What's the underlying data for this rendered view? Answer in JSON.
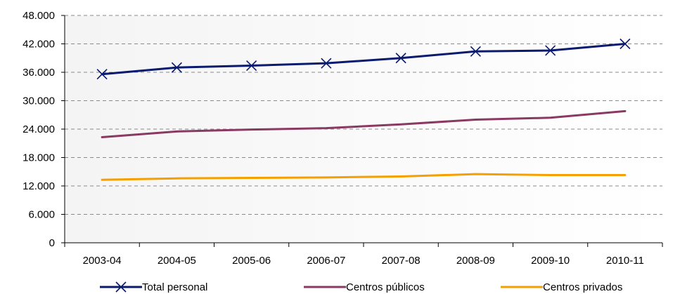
{
  "chart_data": {
    "type": "line",
    "title": "",
    "xlabel": "",
    "ylabel": "",
    "categories": [
      "2003-04",
      "2004-05",
      "2005-06",
      "2006-07",
      "2007-08",
      "2008-09",
      "2009-10",
      "2010-11"
    ],
    "ylim": [
      0,
      48000
    ],
    "yticks": [
      0,
      6000,
      12000,
      18000,
      24000,
      30000,
      36000,
      42000,
      48000
    ],
    "ytick_labels": [
      "0",
      "6.000",
      "12.000",
      "18.000",
      "24.000",
      "30.000",
      "36.000",
      "42.000",
      "48.000"
    ],
    "grid": true,
    "legend_position": "bottom",
    "series": [
      {
        "name": "Total personal",
        "color": "#0a1a6e",
        "marker": "x",
        "values": [
          35600,
          37000,
          37400,
          37900,
          39000,
          40400,
          40600,
          42000
        ]
      },
      {
        "name": "Centros públicos",
        "color": "#8a3a62",
        "marker": "none",
        "values": [
          22300,
          23500,
          23900,
          24200,
          25000,
          26000,
          26400,
          27800
        ]
      },
      {
        "name": "Centros privados",
        "color": "#f5a000",
        "marker": "none",
        "values": [
          13300,
          13600,
          13700,
          13800,
          14000,
          14500,
          14300,
          14300
        ]
      }
    ]
  }
}
